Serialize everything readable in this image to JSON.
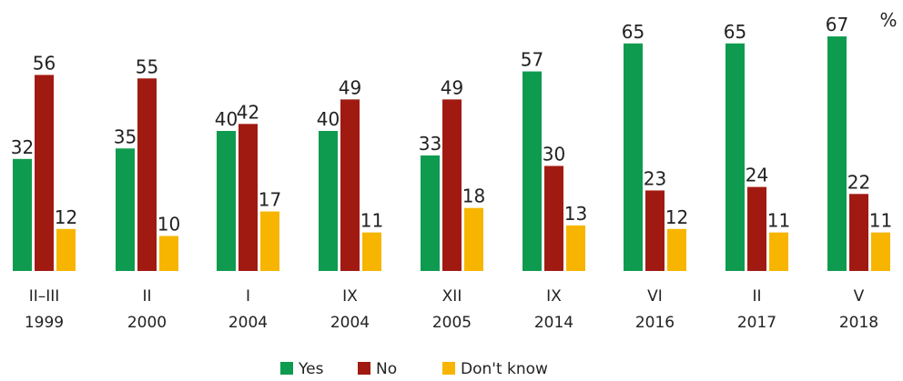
{
  "chart_data": {
    "type": "bar",
    "unit_label": "%",
    "categories": [
      [
        "II–III",
        "1999"
      ],
      [
        "II",
        "2000"
      ],
      [
        "I",
        "2004"
      ],
      [
        "IX",
        "2004"
      ],
      [
        "XII",
        "2005"
      ],
      [
        "IX",
        "2014"
      ],
      [
        "VI",
        "2016"
      ],
      [
        "II",
        "2017"
      ],
      [
        "V",
        "2018"
      ]
    ],
    "series": [
      {
        "name": "Yes",
        "color": "#0f9b4f",
        "values": [
          32,
          35,
          40,
          40,
          33,
          57,
          65,
          65,
          67
        ]
      },
      {
        "name": "No",
        "color": "#a11a12",
        "values": [
          56,
          55,
          42,
          49,
          49,
          30,
          23,
          24,
          22
        ]
      },
      {
        "name": "Don't know",
        "color": "#f7b500",
        "values": [
          12,
          10,
          17,
          11,
          18,
          13,
          12,
          11,
          11
        ]
      }
    ],
    "ylim": [
      0,
      70
    ],
    "grid": false,
    "legend_position": "bottom"
  }
}
